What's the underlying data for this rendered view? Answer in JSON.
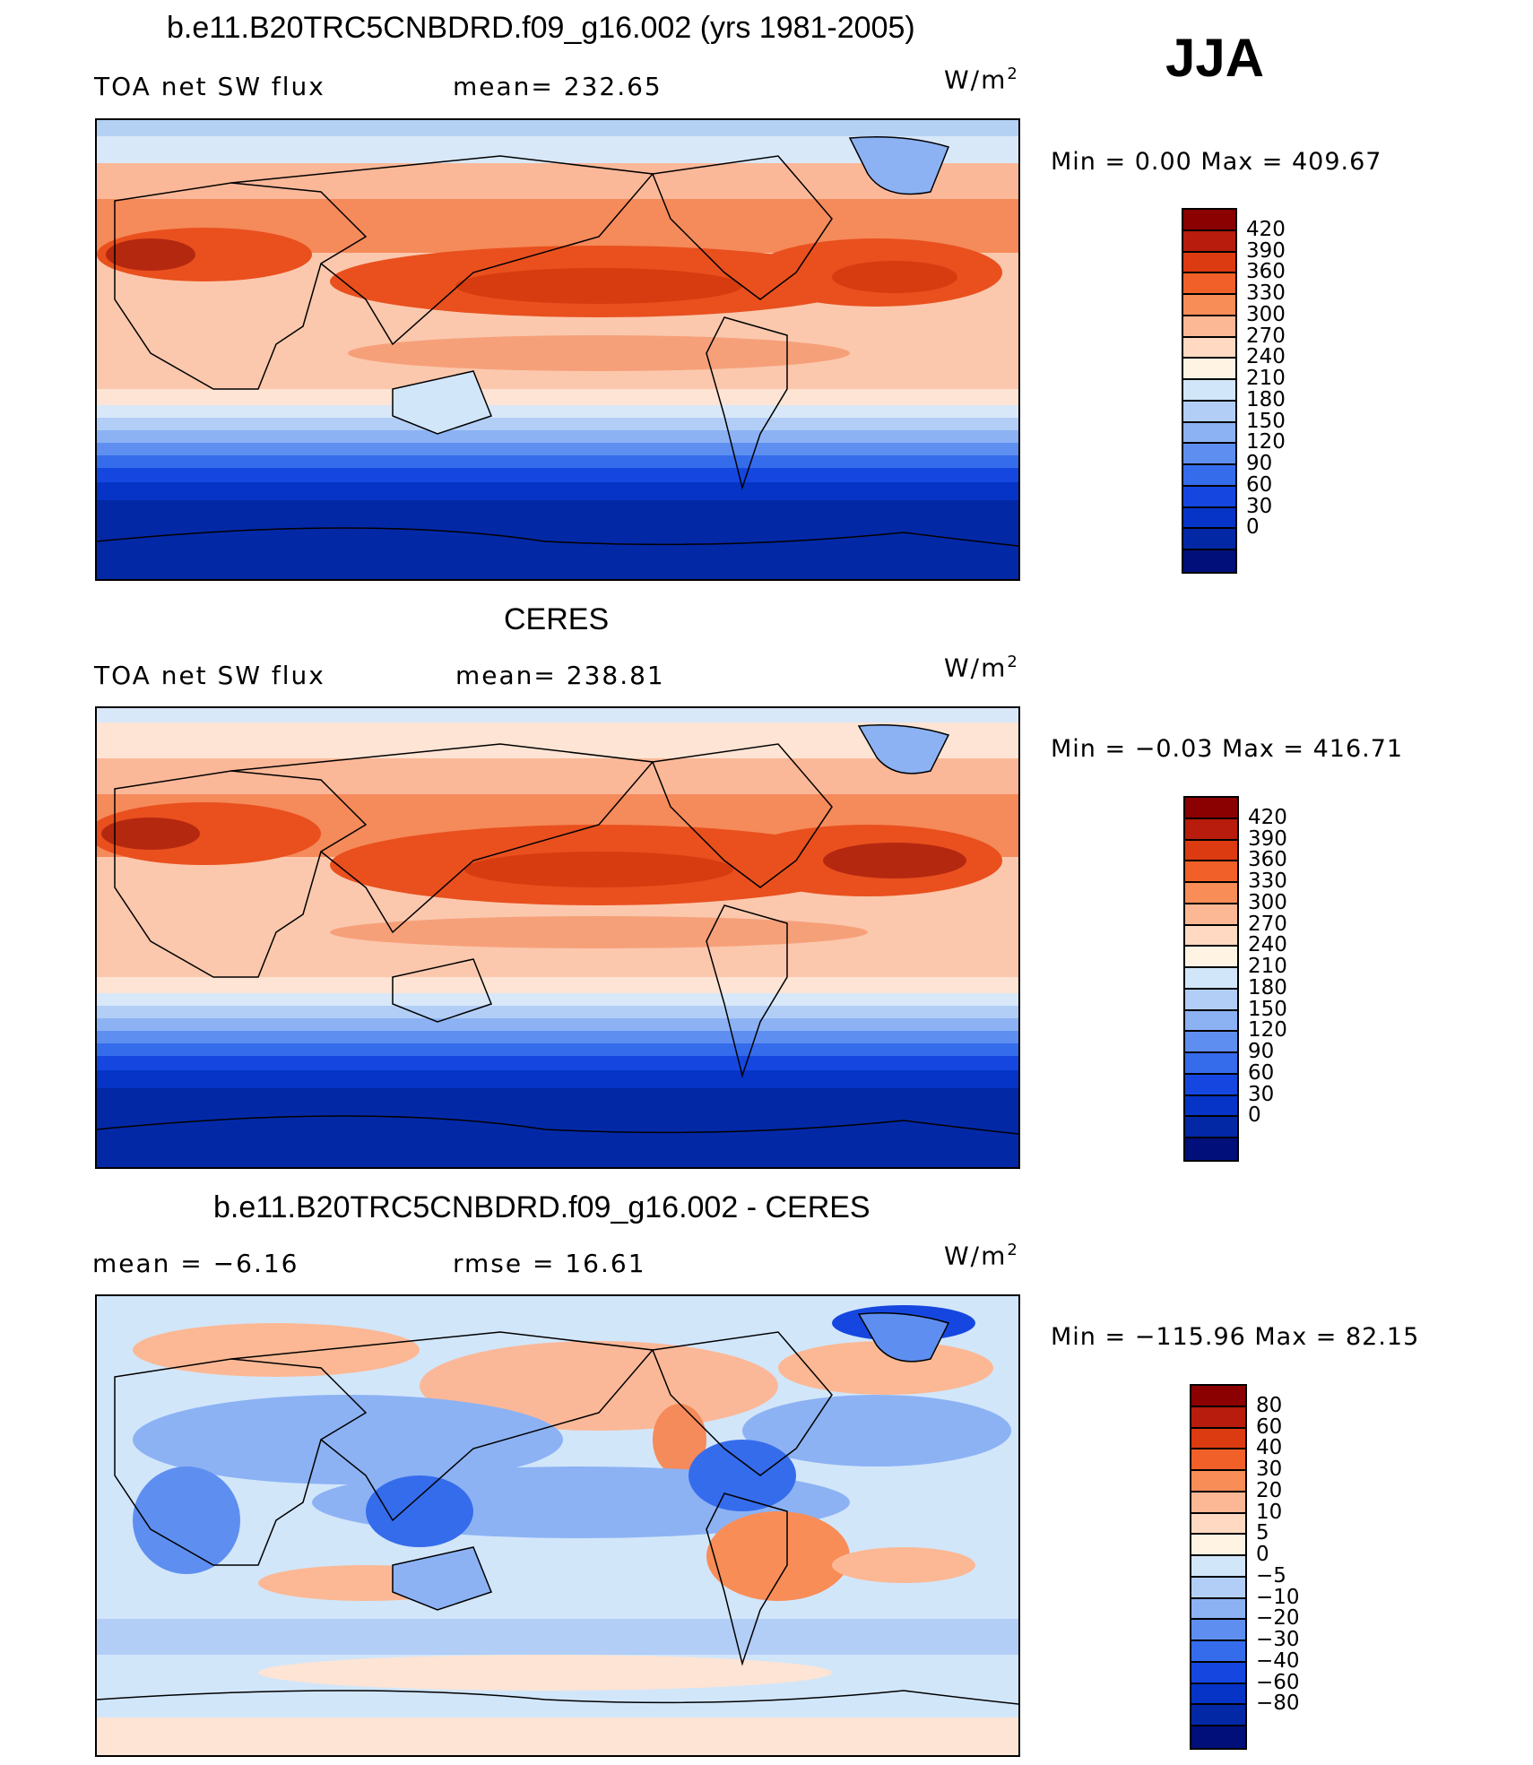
{
  "season": "JJA",
  "panels": [
    {
      "title": "b.e11.B20TRC5CNBDRD.f09_g16.002 (yrs 1981-2005)",
      "left_label": "TOA  net  SW  flux",
      "mid_label": "mean=  232.65",
      "unit_base": "W/m",
      "unit_exp": "2",
      "minmax": "Min  =    0.00  Max  =  409.67",
      "colorbar": {
        "colors": [
          "#8b0000",
          "#b71c0c",
          "#dc3a10",
          "#f06028",
          "#f88d58",
          "#fcb894",
          "#ffd9c2",
          "#fff4e4",
          "#d2e6fa",
          "#b2cef6",
          "#8cb2f4",
          "#5e8ff0",
          "#356cec",
          "#1547e0",
          "#0634c6",
          "#0328a6",
          "#000f7a"
        ],
        "labels": [
          "420",
          "390",
          "360",
          "330",
          "300",
          "270",
          "240",
          "210",
          "180",
          "150",
          "120",
          "90",
          "60",
          "30",
          "0"
        ]
      }
    },
    {
      "title": "CERES",
      "left_label": "TOA  net  SW  flux",
      "mid_label": "mean=  238.81",
      "unit_base": "W/m",
      "unit_exp": "2",
      "minmax": "Min  =   −0.03  Max  =  416.71",
      "colorbar": {
        "colors": [
          "#8b0000",
          "#b71c0c",
          "#dc3a10",
          "#f06028",
          "#f88d58",
          "#fcb894",
          "#ffd9c2",
          "#fff4e4",
          "#d2e6fa",
          "#b2cef6",
          "#8cb2f4",
          "#5e8ff0",
          "#356cec",
          "#1547e0",
          "#0634c6",
          "#0328a6",
          "#000f7a"
        ],
        "labels": [
          "420",
          "390",
          "360",
          "330",
          "300",
          "270",
          "240",
          "210",
          "180",
          "150",
          "120",
          "90",
          "60",
          "30",
          "0"
        ]
      }
    },
    {
      "title": "b.e11.B20TRC5CNBDRD.f09_g16.002 - CERES",
      "left_label": "mean  =    −6.16",
      "mid_label": "rmse  =    16.61",
      "unit_base": "W/m",
      "unit_exp": "2",
      "minmax": "Min  =  −115.96  Max  =    82.15",
      "colorbar": {
        "colors": [
          "#8b0000",
          "#b71c0c",
          "#dc3a10",
          "#f06028",
          "#f88d58",
          "#fcb894",
          "#ffd9c2",
          "#fff4e4",
          "#d2e6fa",
          "#b2cef6",
          "#8cb2f4",
          "#5e8ff0",
          "#356cec",
          "#1547e0",
          "#0634c6",
          "#0328a6",
          "#000f7a"
        ],
        "labels": [
          "80",
          "60",
          "40",
          "30",
          "20",
          "10",
          "5",
          "0",
          "−5",
          "−10",
          "−20",
          "−30",
          "−40",
          "−60",
          "−80"
        ]
      }
    }
  ]
}
